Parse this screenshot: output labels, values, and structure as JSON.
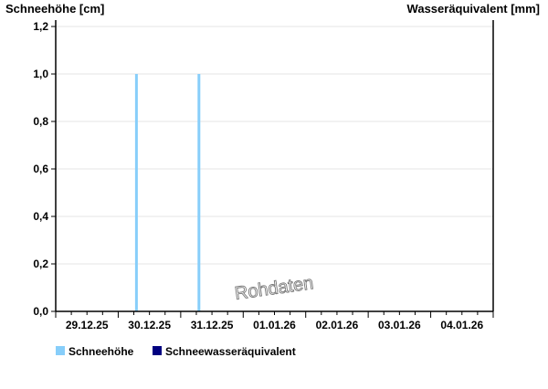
{
  "chart_data": {
    "type": "bar",
    "ylabel_left": "Schneehöhe [cm]",
    "ylabel_right": "Wasseräquivalent [mm]",
    "ylim": [
      0,
      1.227
    ],
    "yticks": [
      "0,0",
      "0,2",
      "0,4",
      "0,6",
      "0,8",
      "1,0",
      "1,2"
    ],
    "ytick_values": [
      0,
      0.2,
      0.4,
      0.6,
      0.8,
      1.0,
      1.2
    ],
    "x_dates": [
      "29.12.25",
      "30.12.25",
      "31.12.25",
      "01.01.26",
      "02.01.26",
      "03.01.26",
      "04.01.26"
    ],
    "grid": true,
    "watermark": "Rohdaten",
    "legend_placement": "bottom-left",
    "series": [
      {
        "name": "Schneehöhe",
        "color": "#87CEFA",
        "points": [
          {
            "date": "30.12.25",
            "time": "07:00",
            "value": 1.0
          },
          {
            "date": "31.12.25",
            "time": "07:00",
            "value": 1.0
          }
        ]
      },
      {
        "name": "Schneewasseräquivalent",
        "color": "#000080",
        "points": []
      }
    ]
  }
}
